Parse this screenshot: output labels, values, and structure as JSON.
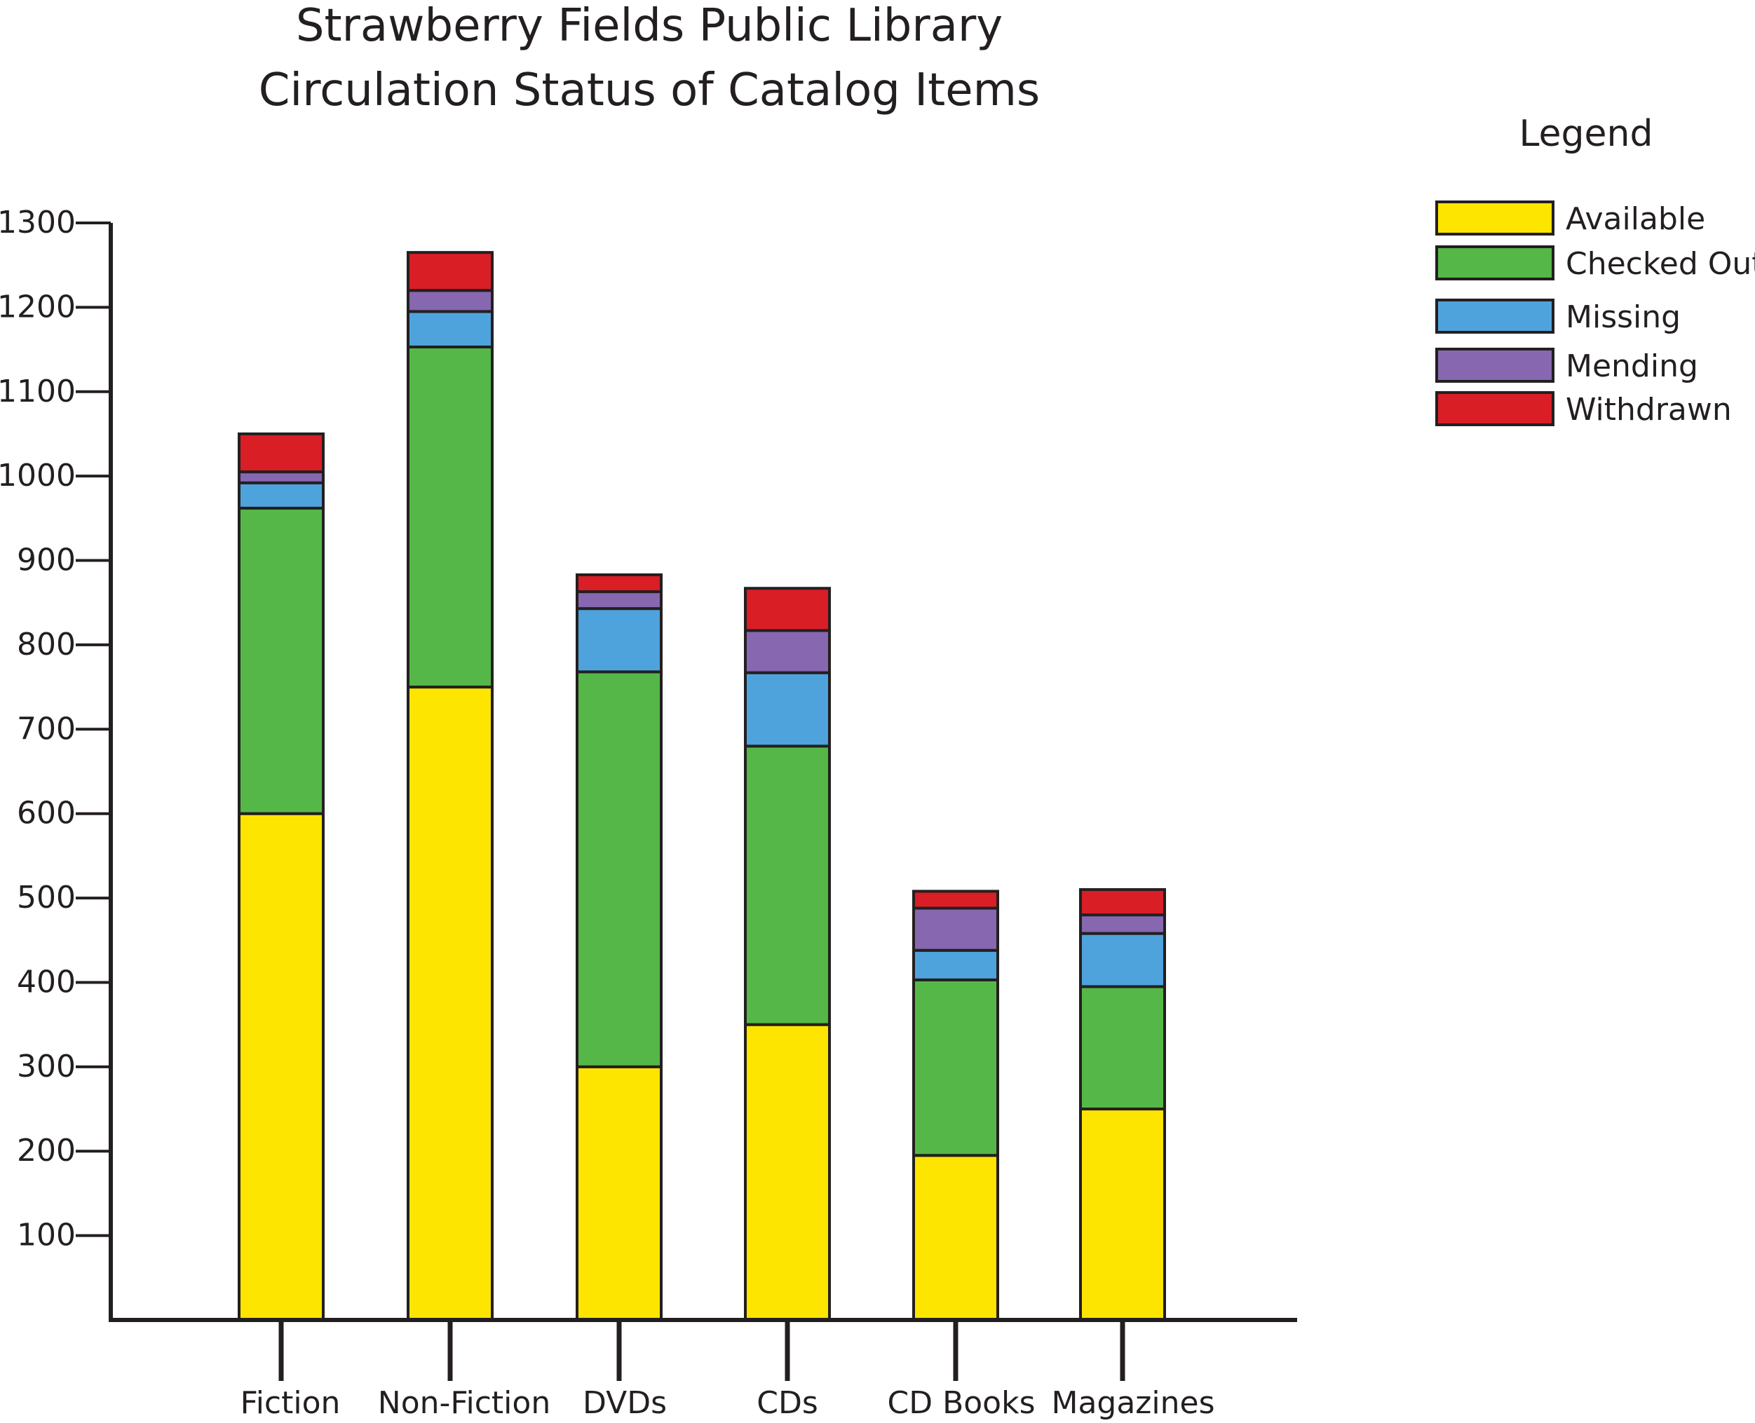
{
  "chart_data": {
    "type": "bar",
    "stacked": true,
    "title": [
      "Strawberry Fields Public Library",
      "Circulation Status of Catalog Items"
    ],
    "xlabel": "",
    "ylabel": "",
    "ylim": [
      0,
      1300
    ],
    "yticks": [
      100,
      200,
      300,
      400,
      500,
      600,
      700,
      800,
      900,
      1000,
      1100,
      1200,
      1300
    ],
    "categories": [
      "Fiction",
      "Non-Fiction",
      "DVDs",
      "CDs",
      "CD Books",
      "Magazines"
    ],
    "series": [
      {
        "name": "Available",
        "color": "#fde500",
        "values": [
          600,
          750,
          300,
          350,
          195,
          250
        ]
      },
      {
        "name": "Checked Out",
        "color": "#55b748",
        "values": [
          362,
          403,
          468,
          330,
          208,
          145
        ]
      },
      {
        "name": "Missing",
        "color": "#4fa3dc",
        "values": [
          30,
          42,
          75,
          87,
          35,
          63
        ]
      },
      {
        "name": "Mending",
        "color": "#8667b0",
        "values": [
          13,
          25,
          20,
          50,
          50,
          22
        ]
      },
      {
        "name": "Withdrawn",
        "color": "#d91e26",
        "values": [
          45,
          45,
          20,
          50,
          20,
          30
        ]
      }
    ],
    "grid": false,
    "legend": {
      "title": "Legend",
      "position": "right"
    }
  }
}
